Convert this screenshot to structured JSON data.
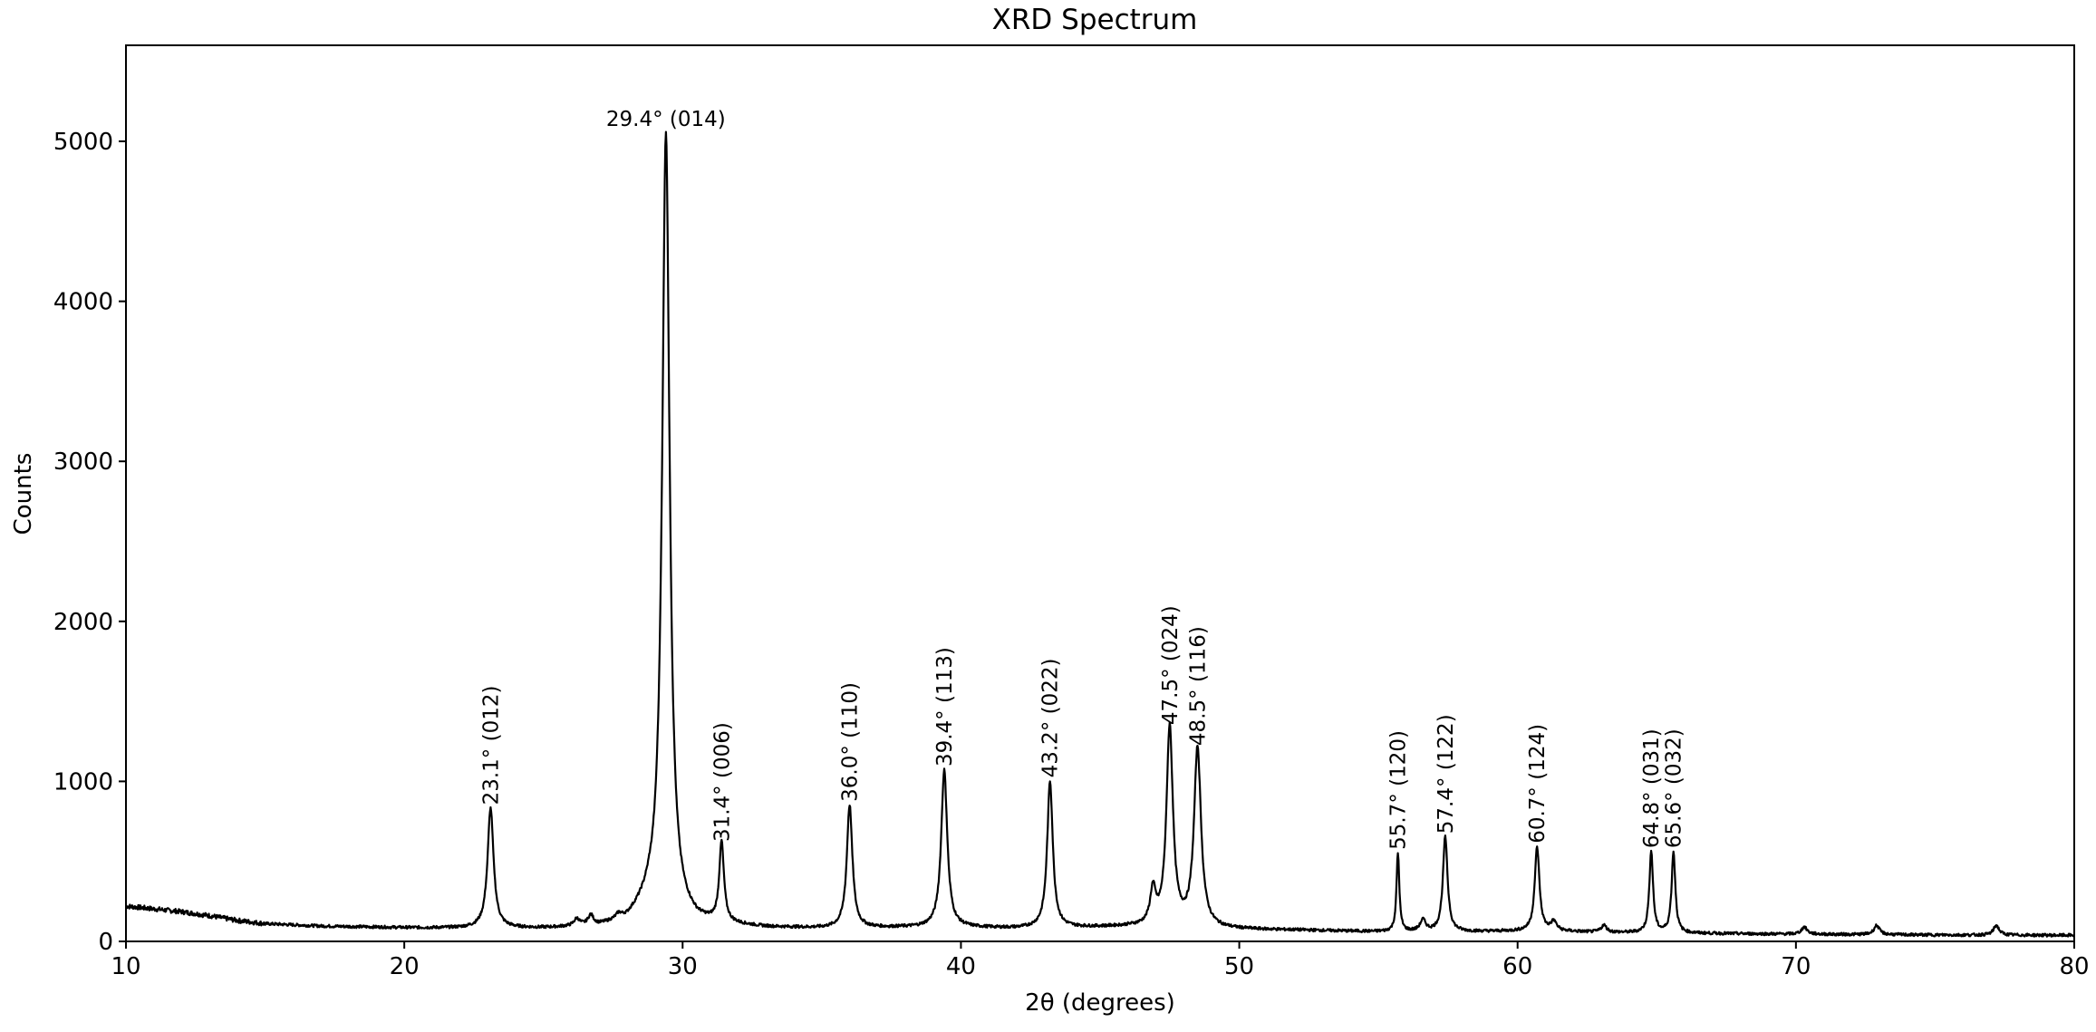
{
  "chart_data": {
    "type": "line",
    "title": "XRD Spectrum",
    "xlabel": "2θ (degrees)",
    "ylabel": "Counts",
    "xlim": [
      10,
      80
    ],
    "ylim": [
      0,
      5600
    ],
    "x_ticks": [
      "10",
      "20",
      "30",
      "40",
      "50",
      "60",
      "70",
      "80"
    ],
    "y_ticks": [
      "0",
      "1000",
      "2000",
      "3000",
      "4000",
      "5000"
    ],
    "grid": false,
    "line_color": "#000000",
    "background": [
      [
        10,
        220
      ],
      [
        12,
        185
      ],
      [
        13,
        160
      ],
      [
        14,
        130
      ],
      [
        15,
        110
      ],
      [
        17,
        95
      ],
      [
        20,
        85
      ],
      [
        22,
        82
      ],
      [
        25,
        80
      ],
      [
        26,
        85
      ],
      [
        27,
        90
      ],
      [
        28,
        120
      ],
      [
        28.8,
        220
      ],
      [
        30.5,
        110
      ],
      [
        33,
        85
      ],
      [
        35,
        80
      ],
      [
        38,
        85
      ],
      [
        40,
        85
      ],
      [
        42,
        80
      ],
      [
        44,
        85
      ],
      [
        46,
        90
      ],
      [
        49.5,
        75
      ],
      [
        52,
        70
      ],
      [
        55,
        60
      ],
      [
        58,
        60
      ],
      [
        61,
        65
      ],
      [
        62,
        60
      ],
      [
        63,
        55
      ],
      [
        66,
        50
      ],
      [
        70,
        45
      ],
      [
        75,
        40
      ],
      [
        80,
        38
      ]
    ],
    "peaks": [
      {
        "x": 23.1,
        "y": 830,
        "width": 0.13,
        "label": "23.1° (012)"
      },
      {
        "x": 29.4,
        "y": 5050,
        "width": 0.16,
        "label": "29.4° (014)"
      },
      {
        "x": 31.4,
        "y": 600,
        "width": 0.1,
        "label": "31.4° (006)"
      },
      {
        "x": 36.0,
        "y": 850,
        "width": 0.12,
        "label": "36.0° (110)"
      },
      {
        "x": 39.4,
        "y": 1070,
        "width": 0.13,
        "label": "39.4° (113)"
      },
      {
        "x": 43.2,
        "y": 1000,
        "width": 0.12,
        "label": "43.2° (022)"
      },
      {
        "x": 47.5,
        "y": 1330,
        "width": 0.14,
        "label": "47.5° (024)"
      },
      {
        "x": 48.5,
        "y": 1200,
        "width": 0.15,
        "label": "48.5° (116)"
      },
      {
        "x": 55.7,
        "y": 550,
        "width": 0.06,
        "label": "55.7° (120)"
      },
      {
        "x": 57.4,
        "y": 650,
        "width": 0.1,
        "label": "57.4° (122)"
      },
      {
        "x": 60.7,
        "y": 590,
        "width": 0.1,
        "label": "60.7° (124)"
      },
      {
        "x": 64.8,
        "y": 560,
        "width": 0.08,
        "label": "64.8° (031)"
      },
      {
        "x": 65.6,
        "y": 560,
        "width": 0.08,
        "label": "65.6° (032)"
      }
    ],
    "minor_peaks": [
      {
        "x": 26.2,
        "y": 130
      },
      {
        "x": 26.7,
        "y": 150
      },
      {
        "x": 27.7,
        "y": 140
      },
      {
        "x": 46.9,
        "y": 300
      },
      {
        "x": 56.6,
        "y": 130
      },
      {
        "x": 61.3,
        "y": 120
      },
      {
        "x": 63.1,
        "y": 100
      },
      {
        "x": 70.3,
        "y": 90
      },
      {
        "x": 72.9,
        "y": 100
      },
      {
        "x": 77.2,
        "y": 100
      }
    ]
  }
}
